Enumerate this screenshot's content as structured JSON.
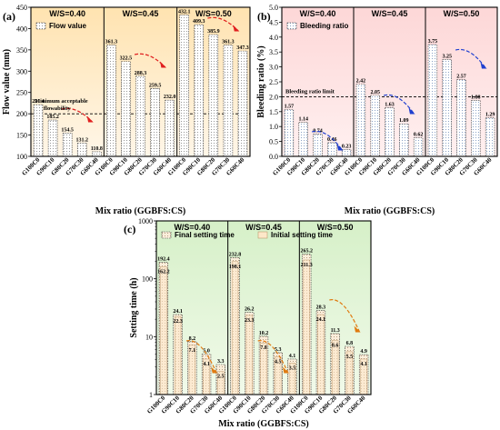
{
  "chart_data": [
    {
      "type": "bar",
      "panel_label": "(a)",
      "ylabel": "Flow value (mm)",
      "xlabel": "Mix ratio (GGBFS:CS)",
      "ylim": [
        100,
        450
      ],
      "yticks": [
        100,
        150,
        200,
        250,
        300,
        350,
        400,
        450
      ],
      "legend": "Flow value",
      "groups": [
        {
          "title": "W/S=0.40",
          "categories": [
            "G100C0",
            "G90C10",
            "G80C20",
            "G70C30",
            "G60C40"
          ],
          "values": [
            221.4,
            185.2,
            154.5,
            131.2,
            110.8
          ]
        },
        {
          "title": "W/S=0.45",
          "categories": [
            "G100C0",
            "G90C10",
            "G80C20",
            "G70C30",
            "G60C40"
          ],
          "values": [
            361.3,
            322.5,
            288.3,
            259.5,
            232.0
          ]
        },
        {
          "title": "W/S=0.50",
          "categories": [
            "G100C0",
            "G90C10",
            "G80C20",
            "G70C30",
            "G60C40"
          ],
          "values": [
            432.1,
            409.3,
            385.9,
            361.3,
            347.3
          ]
        }
      ],
      "reference_line": {
        "value": 200,
        "label_line1": "Minimum acceptable",
        "label_line2": "flowability"
      }
    },
    {
      "type": "bar",
      "panel_label": "(b)",
      "ylabel": "Bleeding ratio (%)",
      "xlabel": "Mix ratio (GGBFS:CS)",
      "ylim": [
        0,
        5
      ],
      "yticks": [
        0.0,
        0.5,
        1.0,
        1.5,
        2.0,
        2.5,
        3.0,
        3.5,
        4.0,
        4.5,
        5.0
      ],
      "legend": "Bleeding ratio",
      "groups": [
        {
          "title": "W/S=0.40",
          "categories": [
            "G100C0",
            "G90C10",
            "G80C20",
            "G70C30",
            "G60C40"
          ],
          "values": [
            1.57,
            1.14,
            0.74,
            0.46,
            0.23
          ]
        },
        {
          "title": "W/S=0.45",
          "categories": [
            "G100C0",
            "G90C10",
            "G80C20",
            "G70C30",
            "G60C40"
          ],
          "values": [
            2.42,
            2.05,
            1.63,
            1.09,
            0.62
          ]
        },
        {
          "title": "W/S=0.50",
          "categories": [
            "G100C0",
            "G90C10",
            "G80C20",
            "G70C30",
            "G60C40"
          ],
          "values": [
            3.75,
            3.25,
            2.57,
            1.88,
            1.29
          ]
        }
      ],
      "reference_line": {
        "value": 2.0,
        "label_line1": "Bleeding ratio limit"
      }
    },
    {
      "type": "bar",
      "panel_label": "(c)",
      "ylabel": "Setting time (h)",
      "xlabel": "Mix ratio (GGBFS:CS)",
      "yscale": "log",
      "ylim": [
        1,
        1000
      ],
      "yticks": [
        1,
        10,
        100,
        1000
      ],
      "series": [
        {
          "name": "Final setting time"
        },
        {
          "name": "Initial setting time"
        }
      ],
      "groups": [
        {
          "title": "W/S=0.40",
          "categories": [
            "G100C0",
            "G90C10",
            "G80C20",
            "G70C30",
            "G60C40"
          ],
          "final": [
            192.4,
            24.1,
            8.2,
            5.0,
            3.3
          ],
          "initial": [
            162.2,
            22.3,
            7.1,
            4.1,
            2.5
          ]
        },
        {
          "title": "W/S=0.45",
          "categories": [
            "G100C0",
            "G90C10",
            "G80C20",
            "G70C30",
            "G60C40"
          ],
          "final": [
            232.8,
            26.2,
            10.2,
            5.3,
            4.1
          ],
          "initial": [
            198.1,
            23.3,
            7.8,
            4.5,
            3.5
          ]
        },
        {
          "title": "W/S=0.50",
          "categories": [
            "G100C0",
            "G90C10",
            "G80C20",
            "G70C30",
            "G60C40"
          ],
          "final": [
            265.2,
            28.3,
            11.3,
            6.8,
            4.9
          ],
          "initial": [
            211.3,
            24.1,
            8.6,
            5.5,
            4.1
          ]
        }
      ]
    }
  ]
}
